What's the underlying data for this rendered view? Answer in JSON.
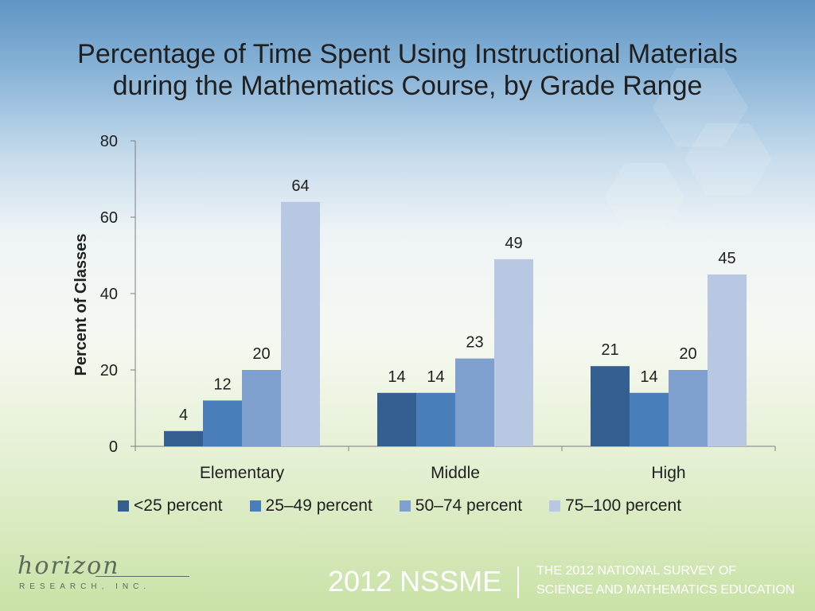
{
  "chart_data": {
    "type": "bar",
    "title_line1": "Percentage of Time Spent Using Instructional Materials",
    "title_line2": "during the Mathematics Course, by Grade Range",
    "xlabel": "",
    "ylabel": "Percent of Classes",
    "ylim": [
      0,
      80
    ],
    "yticks": [
      0,
      20,
      40,
      60,
      80
    ],
    "categories": [
      "Elementary",
      "Middle",
      "High"
    ],
    "series": [
      {
        "name": "<25 percent",
        "color": "#365f91",
        "values": [
          4,
          14,
          21
        ]
      },
      {
        "name": "25–49 percent",
        "color": "#4a7ebb",
        "values": [
          12,
          14,
          14
        ]
      },
      {
        "name": "50–74 percent",
        "color": "#7f9fcf",
        "values": [
          20,
          23,
          20
        ]
      },
      {
        "name": "75–100 percent",
        "color": "#b9c8e2",
        "values": [
          64,
          49,
          45
        ]
      }
    ],
    "legend_position": "bottom"
  },
  "footer": {
    "logo_text": "horizon",
    "logo_subtext": "RESEARCH, INC.",
    "survey_short": "2012 NSSME",
    "survey_line1": "THE 2012 NATIONAL SURVEY OF",
    "survey_line2": "SCIENCE AND MATHEMATICS EDUCATION"
  }
}
